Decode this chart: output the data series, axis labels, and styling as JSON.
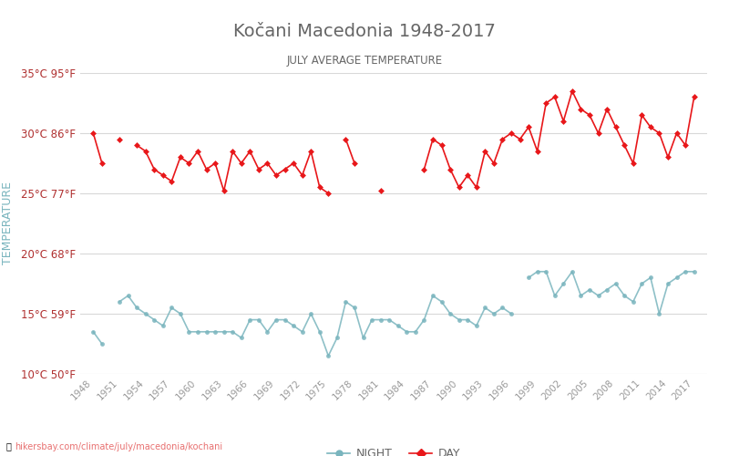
{
  "title": "Kočani Macedonia 1948-2017",
  "subtitle": "JULY AVERAGE TEMPERATURE",
  "ylabel": "TEMPERATURE",
  "xlabel_url": "hikersbay.com/climate/july/macedonia/kochani",
  "legend_night": "NIGHT",
  "legend_day": "DAY",
  "years": [
    1948,
    1949,
    1950,
    1951,
    1952,
    1953,
    1954,
    1955,
    1956,
    1957,
    1958,
    1959,
    1960,
    1961,
    1962,
    1963,
    1964,
    1965,
    1966,
    1967,
    1968,
    1969,
    1970,
    1971,
    1972,
    1973,
    1974,
    1975,
    1976,
    1977,
    1978,
    1979,
    1980,
    1981,
    1982,
    1983,
    1984,
    1985,
    1986,
    1987,
    1988,
    1989,
    1990,
    1991,
    1992,
    1993,
    1994,
    1995,
    1996,
    1997,
    1998,
    1999,
    2000,
    2001,
    2002,
    2003,
    2004,
    2005,
    2006,
    2007,
    2008,
    2009,
    2010,
    2011,
    2012,
    2013,
    2014,
    2015,
    2016,
    2017
  ],
  "day_temps": [
    30.0,
    27.5,
    null,
    29.5,
    null,
    29.0,
    28.5,
    27.0,
    26.5,
    26.0,
    28.0,
    27.5,
    28.5,
    27.0,
    27.5,
    25.2,
    28.5,
    27.5,
    28.5,
    27.0,
    27.5,
    26.5,
    27.0,
    27.5,
    26.5,
    28.5,
    25.5,
    25.0,
    null,
    29.5,
    27.5,
    null,
    null,
    25.2,
    null,
    null,
    null,
    null,
    27.0,
    29.5,
    29.0,
    27.0,
    25.5,
    26.5,
    25.5,
    28.5,
    27.5,
    29.5,
    30.0,
    29.5,
    30.5,
    28.5,
    32.5,
    33.0,
    31.0,
    33.5,
    32.0,
    31.5,
    30.0,
    32.0,
    30.5,
    29.0,
    27.5,
    31.5,
    30.5,
    30.0,
    28.0,
    30.0,
    29.0,
    33.0
  ],
  "night_temps": [
    13.5,
    12.5,
    null,
    16.0,
    16.5,
    15.5,
    15.0,
    14.5,
    14.0,
    15.5,
    15.0,
    13.5,
    13.5,
    13.5,
    13.5,
    13.5,
    13.5,
    13.0,
    14.5,
    14.5,
    13.5,
    14.5,
    14.5,
    14.0,
    13.5,
    15.0,
    13.5,
    11.5,
    13.0,
    16.0,
    15.5,
    13.0,
    14.5,
    14.5,
    14.5,
    14.0,
    13.5,
    13.5,
    14.5,
    16.5,
    16.0,
    15.0,
    14.5,
    14.5,
    14.0,
    15.5,
    15.0,
    15.5,
    15.0,
    null,
    18.0,
    18.5,
    18.5,
    16.5,
    17.5,
    18.5,
    16.5,
    17.0,
    16.5,
    17.0,
    17.5,
    16.5,
    16.0,
    17.5,
    18.0,
    15.0,
    17.5,
    18.0,
    18.5,
    18.5
  ],
  "ylim": [
    10,
    35
  ],
  "yticks_c": [
    10,
    15,
    20,
    25,
    30,
    35
  ],
  "yticks_labels": [
    "10°C 50°F",
    "15°C 59°F",
    "20°C 68°F",
    "25°C 77°F",
    "30°C 86°F",
    "35°C 95°F"
  ],
  "xtick_years": [
    1948,
    1951,
    1954,
    1957,
    1960,
    1963,
    1966,
    1969,
    1972,
    1975,
    1978,
    1981,
    1984,
    1987,
    1990,
    1993,
    1996,
    1999,
    2002,
    2005,
    2008,
    2011,
    2014,
    2017
  ],
  "day_color": "#e8171a",
  "night_color": "#7ab5be",
  "bg_color": "#ffffff",
  "grid_color": "#d8d8d8",
  "title_color": "#666666",
  "ylabel_color": "#7ab5be",
  "ytick_color": "#b03030",
  "xtick_color": "#999999"
}
